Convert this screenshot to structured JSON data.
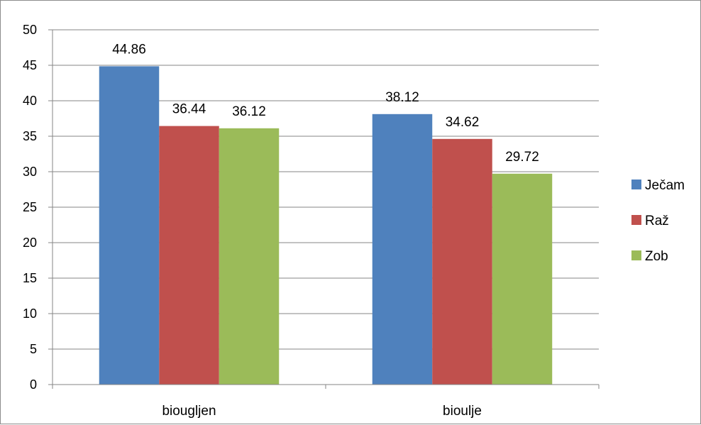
{
  "chart_data": {
    "type": "bar",
    "categories": [
      "biougljen",
      "bioulje"
    ],
    "series": [
      {
        "name": "Ječam",
        "color": "#4f81bd",
        "values": [
          44.86,
          38.12
        ],
        "labels": [
          "44.86",
          "38.12"
        ]
      },
      {
        "name": "Raž",
        "color": "#c0504d",
        "values": [
          36.44,
          34.62
        ],
        "labels": [
          "36.44",
          "34.62"
        ]
      },
      {
        "name": "Zob",
        "color": "#9bbb59",
        "values": [
          36.12,
          29.72
        ],
        "labels": [
          "36.12",
          "29.72"
        ]
      }
    ],
    "ylim": [
      0,
      50
    ],
    "yticks": [
      "0",
      "5",
      "10",
      "15",
      "20",
      "25",
      "30",
      "35",
      "40",
      "45",
      "50"
    ],
    "title": "",
    "xlabel": "",
    "ylabel": "",
    "grid": true,
    "legend_position": "right",
    "gridline_color": "#868686",
    "axis_color": "#868686"
  }
}
